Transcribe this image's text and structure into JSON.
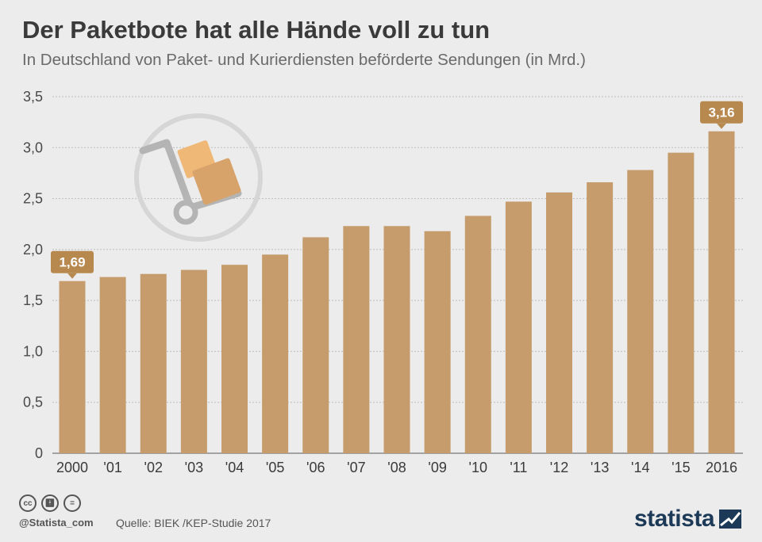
{
  "header": {
    "title": "Der Paketbote hat alle Hände voll zu tun",
    "subtitle": "In Deutschland von Paket- und Kurierdiensten beförderte Sendungen (in Mrd.)"
  },
  "footer": {
    "handle": "@Statista_com",
    "source": "Quelle: BIEK /KEP-Studie 2017",
    "brand": "statista",
    "license_icons": [
      "cc-icon",
      "by-icon",
      "nd-icon"
    ]
  },
  "colors": {
    "bar": "#c69c6d",
    "label_bg": "#b8894f",
    "grid": "#bdbdbd",
    "background": "#ececec",
    "brand": "#1c3a57"
  },
  "chart_data": {
    "type": "bar",
    "categories": [
      "2000",
      "'01",
      "'02",
      "'03",
      "'04",
      "'05",
      "'06",
      "'07",
      "'08",
      "'09",
      "'10",
      "'11",
      "'12",
      "'13",
      "'14",
      "'15",
      "2016"
    ],
    "values": [
      1.69,
      1.73,
      1.76,
      1.8,
      1.85,
      1.95,
      2.12,
      2.23,
      2.23,
      2.18,
      2.33,
      2.47,
      2.56,
      2.66,
      2.78,
      2.95,
      3.16
    ],
    "ylim": [
      0,
      3.5
    ],
    "yticks": [
      "0",
      "0,5",
      "1,0",
      "1,5",
      "2,0",
      "2,5",
      "3,0",
      "3,5"
    ],
    "ytick_values": [
      0,
      0.5,
      1.0,
      1.5,
      2.0,
      2.5,
      3.0,
      3.5
    ],
    "annotations": [
      {
        "index": 0,
        "text": "1,69"
      },
      {
        "index": 16,
        "text": "3,16"
      }
    ],
    "grid": true,
    "illustration": "hand-truck-with-parcels-icon"
  }
}
